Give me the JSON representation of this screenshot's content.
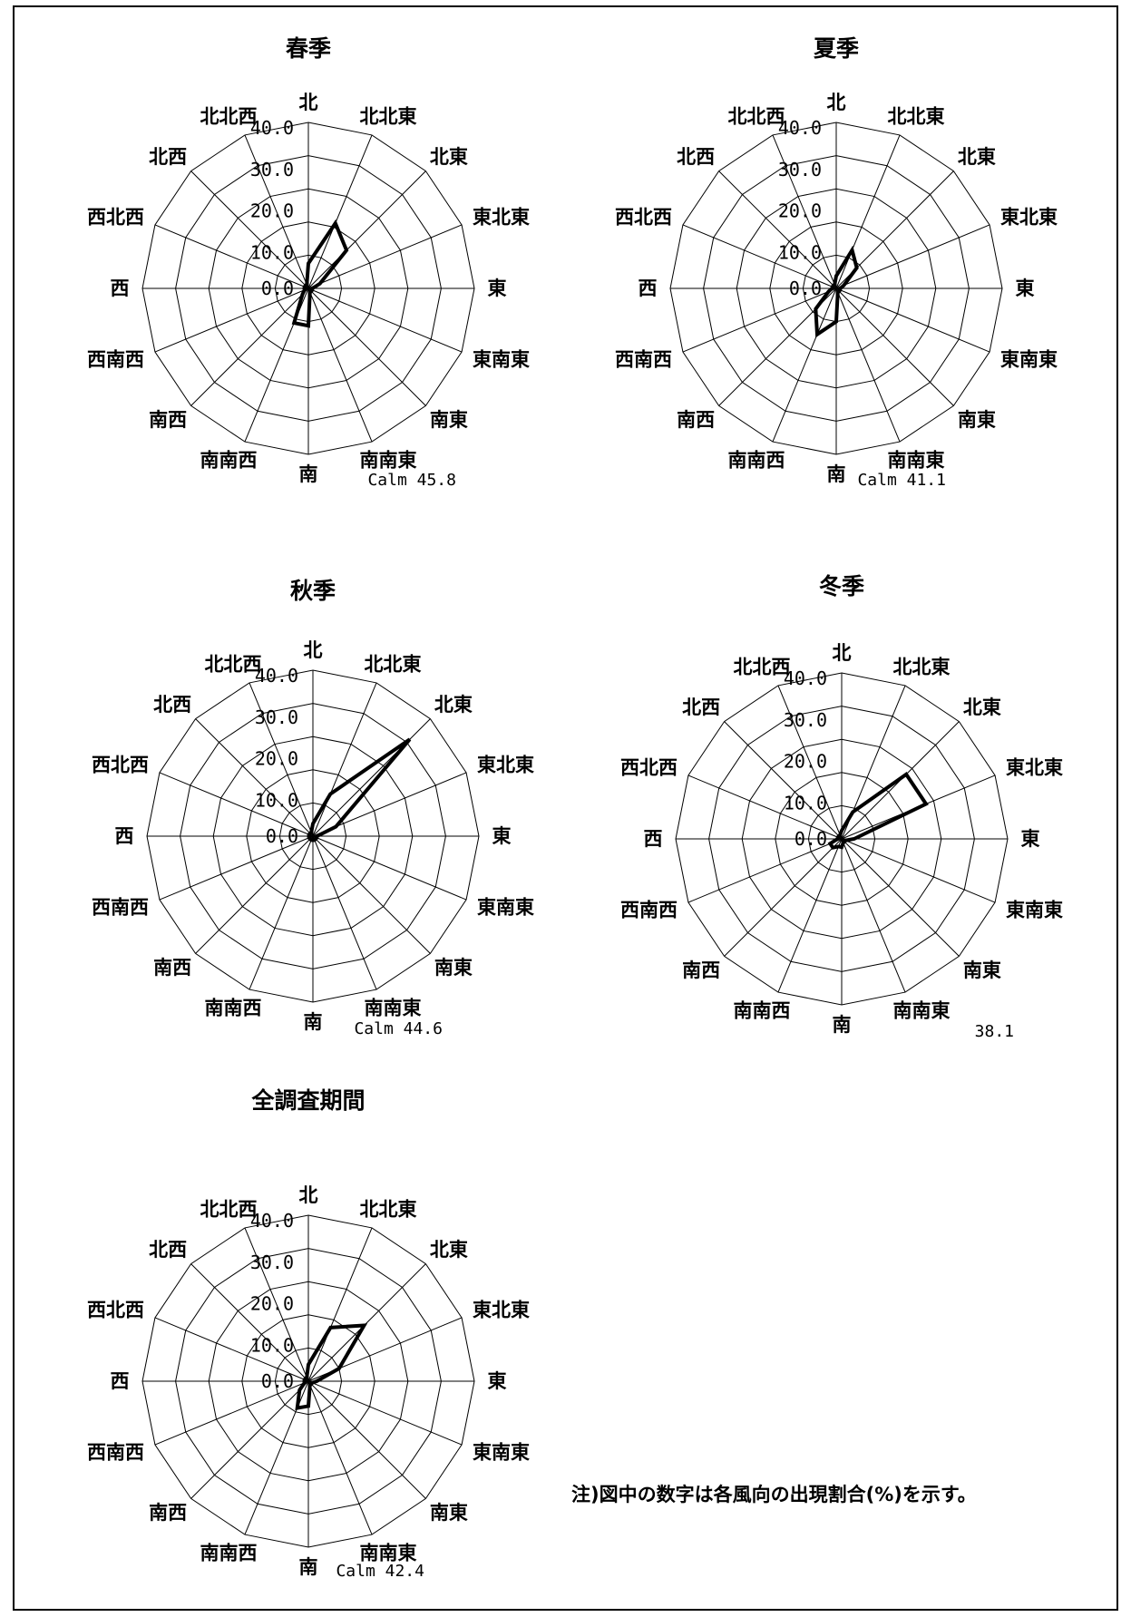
{
  "directions": [
    "北",
    "北北東",
    "北東",
    "東北東",
    "東",
    "東南東",
    "南東",
    "南南東",
    "南",
    "南南西",
    "南西",
    "西南西",
    "西",
    "西北西",
    "北西",
    "北北西"
  ],
  "ticks": [
    "0.0",
    "10.0",
    "20.0",
    "30.0",
    "40.0"
  ],
  "chart_data": [
    {
      "type": "radar",
      "title": "春季",
      "rlim": [
        0,
        40
      ],
      "values": [
        6,
        17,
        13,
        3,
        1,
        1,
        1,
        1,
        9,
        9,
        2,
        1,
        1,
        1,
        1,
        1
      ],
      "calm_label": "Calm",
      "calm_value": "45.8"
    },
    {
      "type": "radar",
      "title": "夏季",
      "rlim": [
        0,
        40
      ],
      "values": [
        3,
        10,
        7,
        2,
        1,
        1,
        1,
        1,
        8,
        12,
        7,
        2,
        1,
        1,
        1,
        1
      ],
      "calm_label": "Calm",
      "calm_value": "41.1"
    },
    {
      "type": "radar",
      "title": "秋季",
      "rlim": [
        0,
        40
      ],
      "values": [
        3,
        11,
        33,
        6,
        1,
        1,
        1,
        1,
        1,
        1,
        1,
        1,
        1,
        1,
        1,
        1
      ],
      "calm_label": "Calm",
      "calm_value": "44.6"
    },
    {
      "type": "radar",
      "title": "冬季",
      "rlim": [
        0,
        40
      ],
      "values": [
        2,
        7,
        22,
        22,
        3,
        1,
        1,
        1,
        2,
        2,
        3,
        3,
        1,
        1,
        1,
        1
      ],
      "calm_label": "",
      "calm_value": "38.1"
    },
    {
      "type": "radar",
      "title": "全調査期間",
      "rlim": [
        0,
        40
      ],
      "values": [
        4,
        14,
        19,
        8,
        2,
        1,
        1,
        1,
        6,
        7,
        3,
        1,
        1,
        1,
        1,
        1
      ],
      "calm_label": "Calm",
      "calm_value": "42.4"
    }
  ],
  "note": "注)図中の数字は各風向の出現割合(%)を示す。"
}
